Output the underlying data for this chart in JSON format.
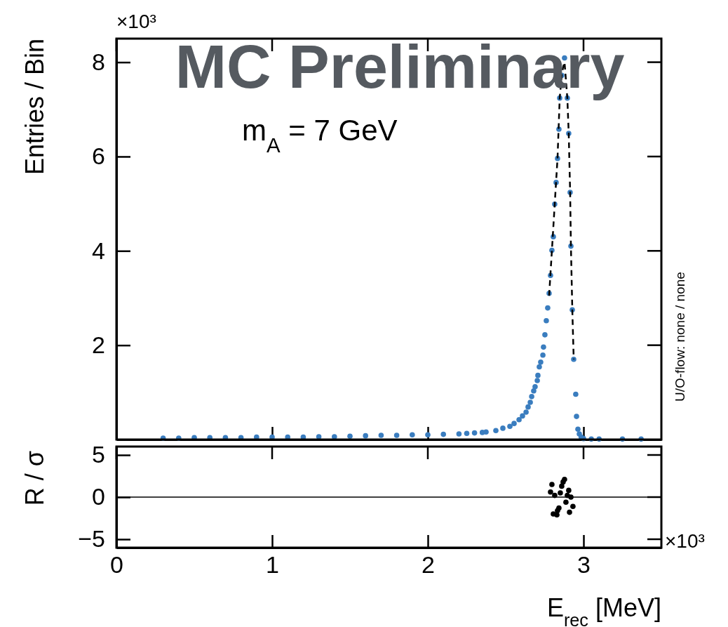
{
  "chart_data": [
    {
      "type": "scatter",
      "ylabel": "Entries / Bin",
      "marker": "circle",
      "tick_labels": "y",
      "xlim": [
        0,
        3.5
      ],
      "ylim": [
        0,
        8.5
      ],
      "xticks": [
        0,
        1,
        2,
        3
      ],
      "yticks": [
        2,
        4,
        6,
        8
      ],
      "annotations": [
        "MC Preliminary",
        "m$_{A}$ = 7 GeV",
        "U/O-flow: none / none",
        "×10³"
      ],
      "series": [
        {
          "color": "#3a7dbf",
          "x": [
            0.3,
            0.4,
            0.5,
            0.6,
            0.7,
            0.8,
            0.9,
            1.0,
            1.1,
            1.2,
            1.3,
            1.4,
            1.5,
            1.6,
            1.7,
            1.8,
            1.9,
            2.0,
            2.1,
            2.2,
            2.25,
            2.3,
            2.35,
            2.374,
            2.437,
            2.482,
            2.527,
            2.554,
            2.586,
            2.608,
            2.631,
            2.644,
            2.658,
            2.667,
            2.68,
            2.689,
            2.703,
            2.707,
            2.716,
            2.725,
            2.739,
            2.743,
            2.752,
            2.761,
            2.77,
            2.779,
            2.788,
            2.797,
            2.806,
            2.815,
            2.824,
            2.833,
            2.842,
            2.847,
            2.86,
            2.878,
            2.896,
            2.905,
            2.914,
            2.919,
            2.928,
            2.937,
            2.95,
            2.955,
            2.964,
            2.973,
            2.985,
            3.0,
            3.05,
            3.1,
            3.25,
            3.37
          ],
          "values": [
            0.03,
            0.03,
            0.04,
            0.04,
            0.04,
            0.04,
            0.05,
            0.05,
            0.05,
            0.05,
            0.06,
            0.06,
            0.07,
            0.08,
            0.09,
            0.09,
            0.1,
            0.1,
            0.11,
            0.12,
            0.13,
            0.14,
            0.15,
            0.16,
            0.19,
            0.24,
            0.28,
            0.34,
            0.42,
            0.5,
            0.58,
            0.69,
            0.79,
            0.91,
            1.03,
            1.12,
            1.25,
            1.36,
            1.54,
            1.64,
            1.79,
            1.96,
            2.22,
            2.52,
            2.79,
            3.1,
            3.48,
            4.01,
            4.3,
            4.99,
            5.45,
            5.96,
            6.58,
            7.24,
            7.72,
            8.09,
            7.24,
            6.49,
            5.24,
            4.1,
            2.75,
            1.7,
            0.96,
            0.49,
            0.22,
            0.12,
            0.05,
            0.02,
            0.01,
            0.01,
            0.01,
            0.01
          ]
        },
        {
          "type": "line",
          "color": "#000000",
          "line_style": "dashed",
          "marker": "none",
          "x": [
            2.779,
            2.797,
            2.815,
            2.833,
            2.847,
            2.86,
            2.869,
            2.878,
            2.896,
            2.905,
            2.914,
            2.919,
            2.928,
            2.937
          ],
          "values": [
            3.05,
            4.01,
            4.99,
            5.96,
            7.24,
            7.72,
            7.9,
            8.0,
            7.24,
            6.49,
            5.24,
            4.1,
            2.75,
            1.7
          ]
        }
      ]
    },
    {
      "type": "scatter",
      "ylabel": "R / σ",
      "xlabel": "E$_{rec}$ [MeV]",
      "marker": "circle",
      "xlim": [
        0,
        3.5
      ],
      "ylim": [
        -6,
        6
      ],
      "xticks": [
        0,
        1,
        2,
        3
      ],
      "yticks": [
        {
          "value": -5,
          "label": "−5"
        },
        0,
        5
      ],
      "ref_lines": [
        {
          "axis": "y",
          "value": 0,
          "color": "#000000"
        }
      ],
      "annotations": [
        "×10³"
      ],
      "series": [
        {
          "color": "#000000",
          "x": [
            2.788,
            2.797,
            2.806,
            2.815,
            2.829,
            2.833,
            2.842,
            2.851,
            2.86,
            2.869,
            2.878,
            2.887,
            2.896,
            2.905,
            2.91,
            2.919,
            2.932
          ],
          "values": [
            0.6,
            1.5,
            -2.0,
            0.2,
            -2.1,
            -1.6,
            -1.3,
            0.5,
            1.3,
            1.8,
            2.1,
            -0.6,
            0.2,
            0.8,
            -1.8,
            0,
            -1.1
          ]
        }
      ]
    }
  ]
}
